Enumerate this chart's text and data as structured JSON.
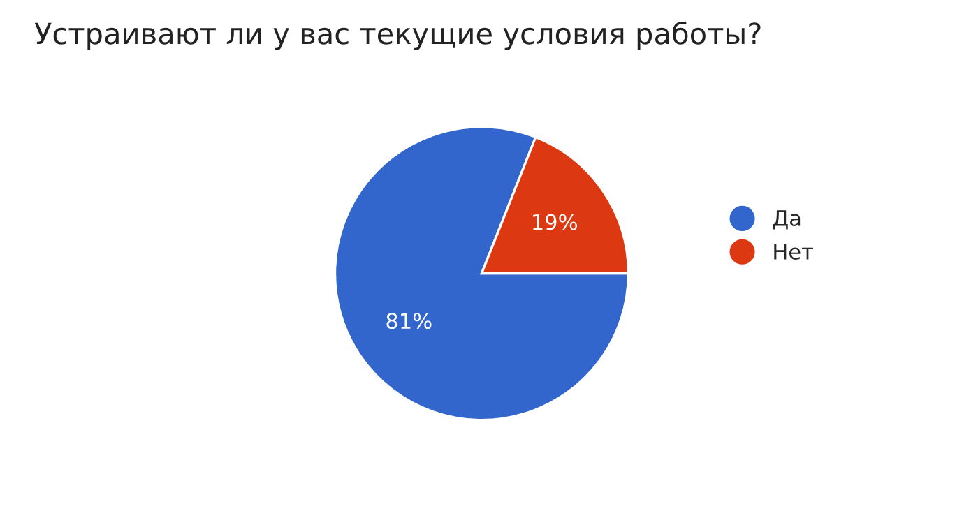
{
  "chart_data": {
    "type": "pie",
    "title": "Устраивают ли у вас текущие условия работы?",
    "categories": [
      "Да",
      "Нет"
    ],
    "values": [
      81,
      19
    ],
    "colors": [
      "#3366cc",
      "#dc3912"
    ],
    "value_labels": [
      "81%",
      "19%"
    ],
    "legend": "right"
  }
}
